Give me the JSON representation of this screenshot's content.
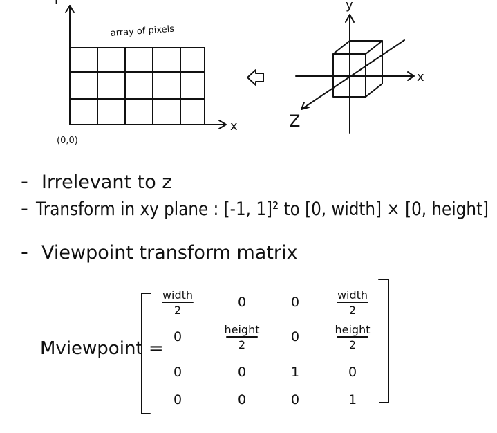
{
  "screen_figure": {
    "caption": "array of pixels",
    "origin_label": "(0,0)",
    "x_axis_label": "x",
    "y_axis_label": "Y",
    "grid": {
      "rows": 3,
      "cols": 5
    }
  },
  "world_figure": {
    "x_axis_label": "x",
    "y_axis_label": "y",
    "z_axis_label": "Z"
  },
  "bullets": [
    {
      "dash": "-",
      "text": "Irrelevant to z"
    },
    {
      "dash": "-",
      "text": "Transform in xy plane : [-1, 1]² to [0, width] × [0, height]"
    },
    {
      "dash": "-",
      "text": "Viewpoint transform matrix"
    }
  ],
  "matrix": {
    "label": "Mviewpoint =",
    "rows": [
      [
        {
          "type": "frac",
          "num": "width",
          "den": "2"
        },
        {
          "type": "num",
          "value": "0"
        },
        {
          "type": "num",
          "value": "0"
        },
        {
          "type": "frac",
          "num": "width",
          "den": "2"
        }
      ],
      [
        {
          "type": "num",
          "value": "0"
        },
        {
          "type": "frac",
          "num": "height",
          "den": "2"
        },
        {
          "type": "num",
          "value": "0"
        },
        {
          "type": "frac",
          "num": "height",
          "den": "2"
        }
      ],
      [
        {
          "type": "num",
          "value": "0"
        },
        {
          "type": "num",
          "value": "0"
        },
        {
          "type": "num",
          "value": "1"
        },
        {
          "type": "num",
          "value": "0"
        }
      ],
      [
        {
          "type": "num",
          "value": "0"
        },
        {
          "type": "num",
          "value": "0"
        },
        {
          "type": "num",
          "value": "0"
        },
        {
          "type": "num",
          "value": "1"
        }
      ]
    ]
  }
}
